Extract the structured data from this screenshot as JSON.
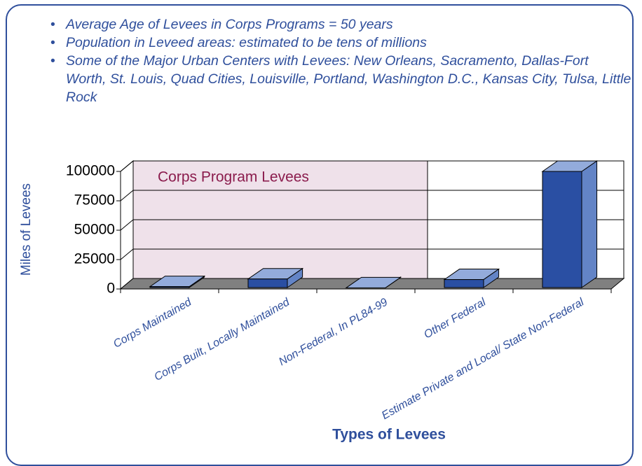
{
  "bullets": [
    "Average Age of Levees in Corps Programs = 50 years",
    "Population in Leveed areas: estimated to be tens of millions",
    "Some of the Major Urban Centers with Levees: New Orleans, Sacramento, Dallas-Fort Worth, St. Louis, Quad Cities, Louisville, Portland, Washington D.C., Kansas City, Tulsa, Little Rock"
  ],
  "chart_data": {
    "type": "bar3d",
    "region_label": "Corps Program Levees",
    "xlabel": "Types of Levees",
    "ylabel": "Miles of Levees",
    "categories": [
      "Corps Maintained",
      "Corps Built, Locally Maintained",
      "Non-Federal, In PL84-99",
      "Other Federal",
      "Estimate Private and Local/ State Non-Federal"
    ],
    "values": [
      2000,
      8500,
      1000,
      8000,
      100000
    ],
    "color": "#2a4fa3",
    "ylim": [
      0,
      100000
    ],
    "yticks": [
      0,
      25000,
      50000,
      75000,
      100000
    ],
    "grid": true
  }
}
